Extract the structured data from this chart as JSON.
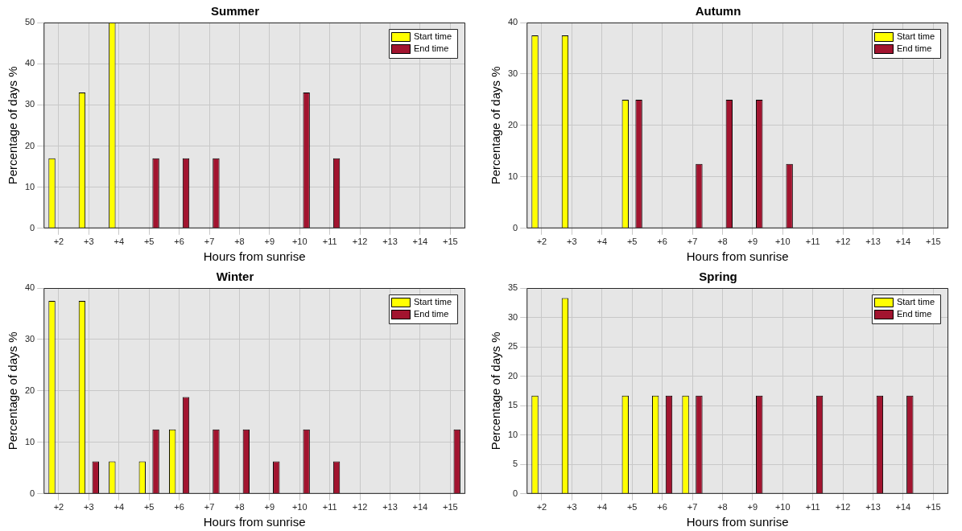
{
  "chart_data": [
    {
      "type": "bar",
      "title": "Summer",
      "xlabel": "Hours from sunrise",
      "ylabel": "Percentage of days %",
      "categories": [
        "+2",
        "+3",
        "+4",
        "+5",
        "+6",
        "+7",
        "+8",
        "+9",
        "+10",
        "+11",
        "+12",
        "+13",
        "+14",
        "+15"
      ],
      "ylim": [
        0,
        50
      ],
      "yticks": [
        0,
        10,
        20,
        30,
        40,
        50
      ],
      "grid": true,
      "legend": "top right",
      "series": [
        {
          "name": "Start time",
          "color": "#ffff00",
          "values": [
            17,
            33,
            50,
            0,
            0,
            0,
            0,
            0,
            0,
            0,
            0,
            0,
            0,
            0
          ]
        },
        {
          "name": "End time",
          "color": "#a2142f",
          "values": [
            0,
            0,
            0,
            17,
            17,
            17,
            0,
            0,
            33,
            17,
            0,
            0,
            0,
            0
          ]
        }
      ]
    },
    {
      "type": "bar",
      "title": "Autumn",
      "xlabel": "Hours from sunrise",
      "ylabel": "Percentage of days %",
      "categories": [
        "+2",
        "+3",
        "+4",
        "+5",
        "+6",
        "+7",
        "+8",
        "+9",
        "+10",
        "+11",
        "+12",
        "+13",
        "+14",
        "+15"
      ],
      "ylim": [
        0,
        40
      ],
      "yticks": [
        0,
        10,
        20,
        30,
        40
      ],
      "grid": true,
      "legend": "top right",
      "series": [
        {
          "name": "Start time",
          "color": "#ffff00",
          "values": [
            37.5,
            37.5,
            0,
            25,
            0,
            0,
            0,
            0,
            0,
            0,
            0,
            0,
            0,
            0
          ]
        },
        {
          "name": "End time",
          "color": "#a2142f",
          "values": [
            0,
            0,
            0,
            25,
            0,
            12.5,
            25,
            25,
            12.5,
            0,
            0,
            0,
            0,
            0
          ]
        }
      ]
    },
    {
      "type": "bar",
      "title": "Winter",
      "xlabel": "Hours from sunrise",
      "ylabel": "Percentage of days %",
      "categories": [
        "+2",
        "+3",
        "+4",
        "+5",
        "+6",
        "+7",
        "+8",
        "+9",
        "+10",
        "+11",
        "+12",
        "+13",
        "+14",
        "+15"
      ],
      "ylim": [
        0,
        40
      ],
      "yticks": [
        0,
        10,
        20,
        30,
        40
      ],
      "grid": true,
      "legend": "top right",
      "series": [
        {
          "name": "Start time",
          "color": "#ffff00",
          "values": [
            37.5,
            37.5,
            6.3,
            6.3,
            12.5,
            0,
            0,
            0,
            0,
            0,
            0,
            0,
            0,
            0
          ]
        },
        {
          "name": "End time",
          "color": "#a2142f",
          "values": [
            0,
            6.3,
            0,
            12.5,
            18.8,
            12.5,
            12.5,
            6.3,
            12.5,
            6.3,
            0,
            0,
            0,
            12.5
          ]
        }
      ]
    },
    {
      "type": "bar",
      "title": "Spring",
      "xlabel": "Hours from sunrise",
      "ylabel": "Percentage of days %",
      "categories": [
        "+2",
        "+3",
        "+4",
        "+5",
        "+6",
        "+7",
        "+8",
        "+9",
        "+10",
        "+11",
        "+12",
        "+13",
        "+14",
        "+15"
      ],
      "ylim": [
        0,
        35
      ],
      "yticks": [
        0,
        5,
        10,
        15,
        20,
        25,
        30,
        35
      ],
      "grid": true,
      "legend": "top right",
      "series": [
        {
          "name": "Start time",
          "color": "#ffff00",
          "values": [
            16.7,
            33.3,
            0,
            16.7,
            16.7,
            16.7,
            0,
            0,
            0,
            0,
            0,
            0,
            0,
            0
          ]
        },
        {
          "name": "End time",
          "color": "#a2142f",
          "values": [
            0,
            0,
            0,
            0,
            16.7,
            16.7,
            0,
            16.7,
            0,
            16.7,
            0,
            16.7,
            16.7,
            0
          ]
        }
      ]
    }
  ]
}
